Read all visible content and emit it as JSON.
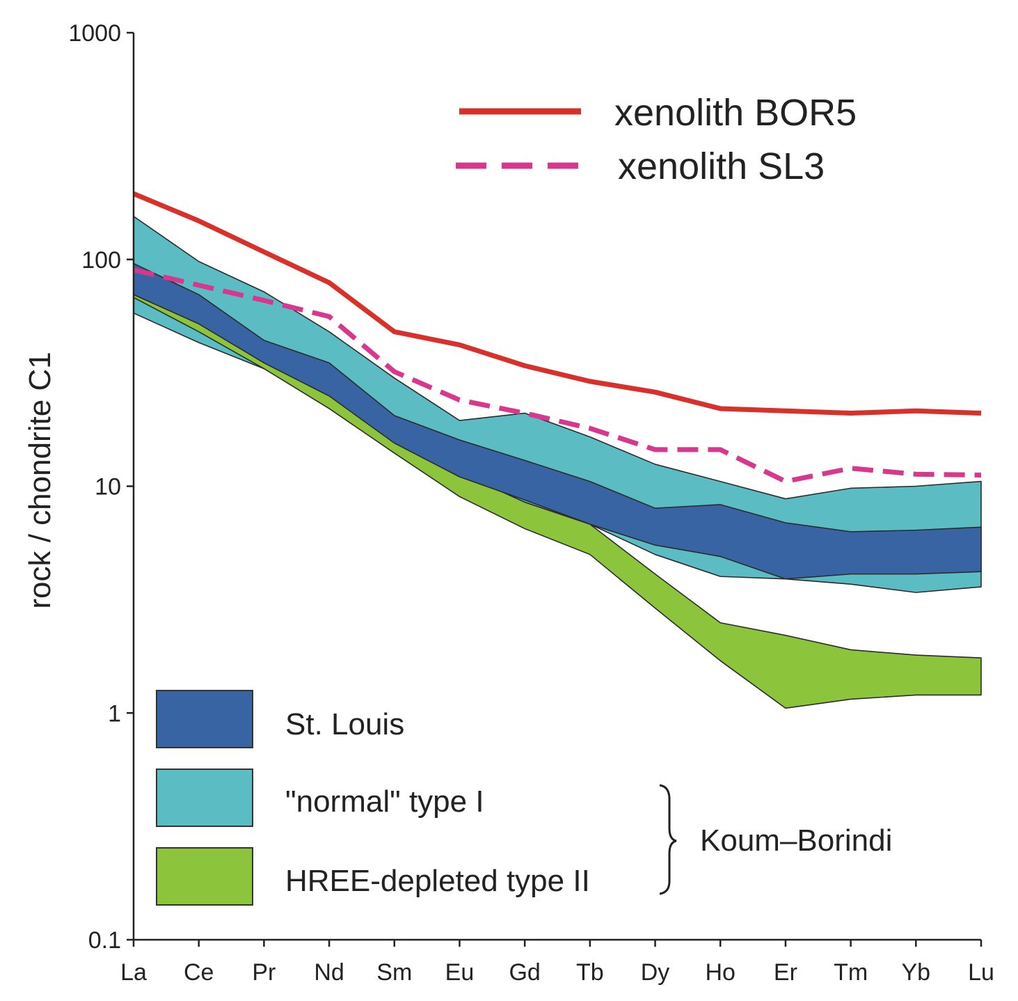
{
  "chart_data": {
    "type": "line",
    "ylabel": "rock / chondrite C1",
    "yscale": "log",
    "ylim": [
      0.1,
      1000
    ],
    "yticks": [
      "1000",
      "100",
      "10",
      "1",
      "0.1"
    ],
    "categories": [
      "La",
      "Ce",
      "Pr",
      "Nd",
      "Sm",
      "Eu",
      "Gd",
      "Tb",
      "Dy",
      "Ho",
      "Er",
      "Tm",
      "Yb",
      "Lu"
    ],
    "bands": [
      {
        "name": "\"normal\" type I",
        "color": "#5bbcc4",
        "upper": [
          155,
          98,
          72,
          48,
          30,
          19.5,
          21,
          16.5,
          12.5,
          10.5,
          8.8,
          9.8,
          10,
          10.5
        ],
        "lower": [
          58,
          43,
          33,
          24,
          15.5,
          10.5,
          8.5,
          6.8,
          5,
          4,
          3.9,
          3.7,
          3.4,
          3.6
        ]
      },
      {
        "name": "HREE-depleted type II",
        "color": "#8cc43c",
        "upper": [
          88,
          60,
          42,
          28,
          17.5,
          11.5,
          8.5,
          6.8,
          4.1,
          2.5,
          2.2,
          1.9,
          1.8,
          1.75
        ],
        "lower": [
          68,
          48,
          33,
          22,
          14,
          9,
          6.5,
          5,
          2.9,
          1.7,
          1.05,
          1.15,
          1.2,
          1.2
        ]
      },
      {
        "name": "St. Louis",
        "color": "#3864a4",
        "upper": [
          96,
          70,
          44,
          35,
          20.5,
          16,
          13,
          10.5,
          8,
          8.3,
          6.9,
          6.3,
          6.4,
          6.6
        ],
        "lower": [
          70,
          52,
          35,
          25,
          15.5,
          11,
          8.7,
          6.8,
          5.5,
          4.9,
          3.9,
          4.1,
          4.1,
          4.2
        ]
      }
    ],
    "series": [
      {
        "name": "xenolith BOR5",
        "color": "#d9302a",
        "dash": "solid",
        "values": [
          195,
          148,
          108,
          79,
          48,
          42,
          34,
          29,
          26,
          22,
          21.5,
          21,
          21.5,
          21
        ]
      },
      {
        "name": "xenolith SL3",
        "color": "#d9368e",
        "dash": "dashed",
        "values": [
          90,
          77,
          66,
          56,
          32,
          24,
          21,
          18,
          14.5,
          14.5,
          10.5,
          12,
          11.3,
          11.2
        ]
      }
    ],
    "legend": {
      "lines": [
        "xenolith BOR5",
        "xenolith SL3"
      ],
      "boxes": [
        "St. Louis",
        "\"normal\" type I",
        "HREE-depleted type II"
      ],
      "group_label": "Koum–Borindi"
    }
  }
}
